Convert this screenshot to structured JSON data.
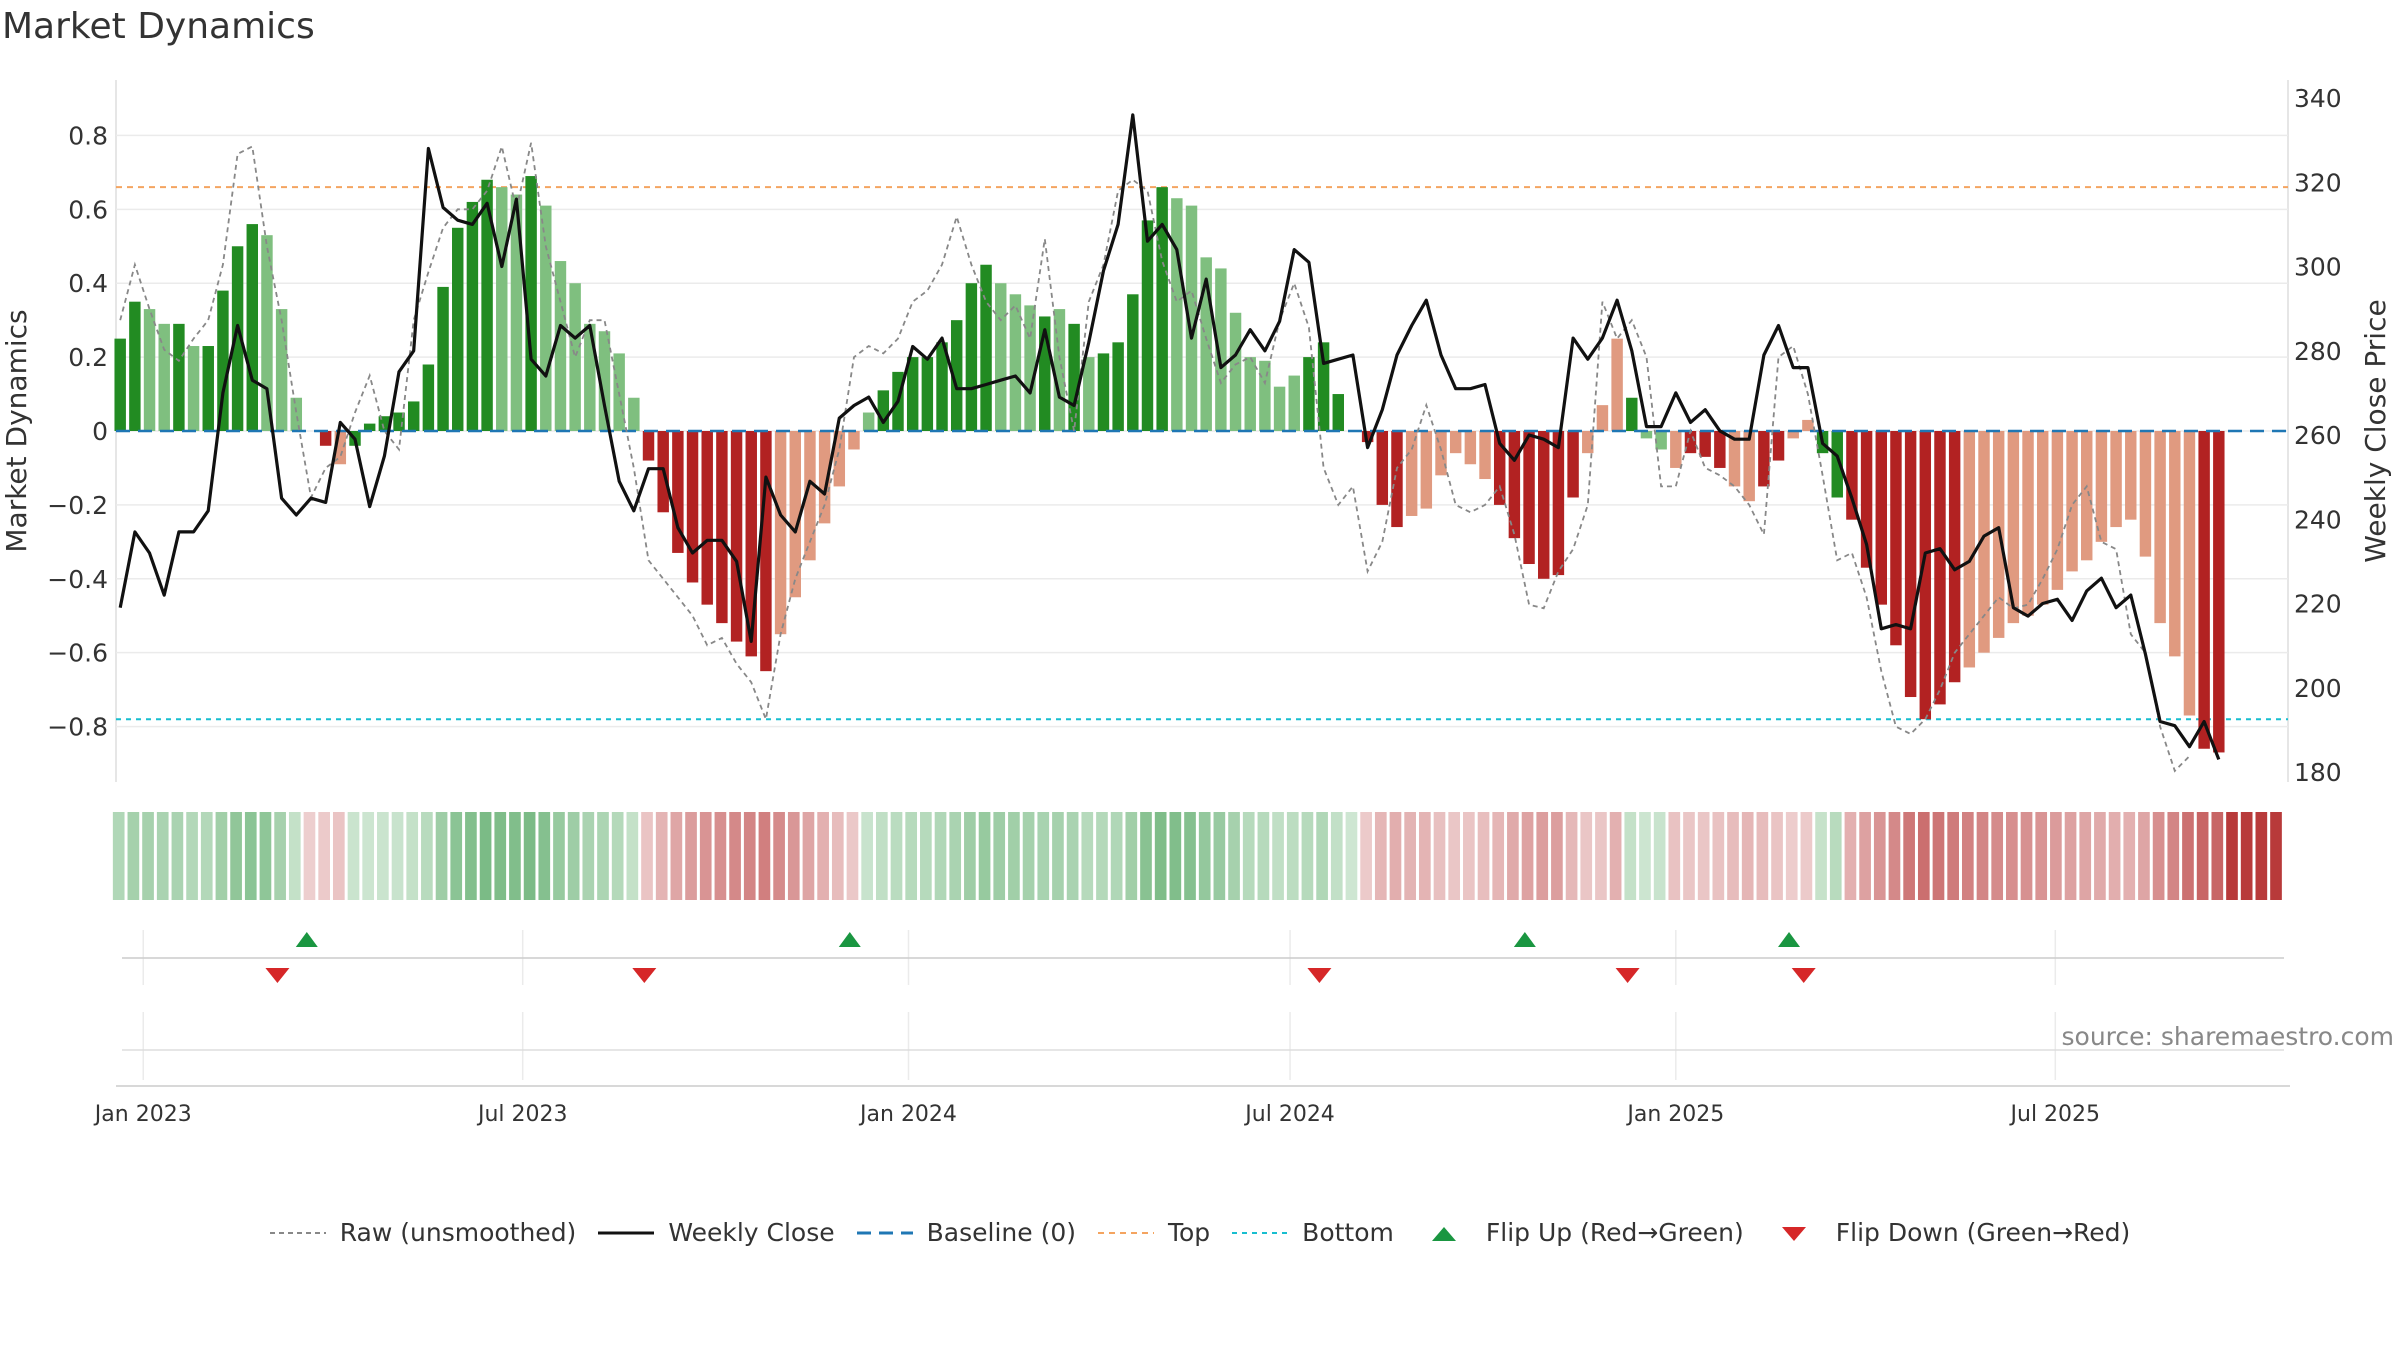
{
  "title": "Market Dynamics",
  "source": "source: sharemaestro.com",
  "colors": {
    "strong_green": "#228b22",
    "light_green": "#7fbf7f",
    "strong_red": "#b22222",
    "light_red": "#e09a80",
    "raw_line": "#888888",
    "close_line": "#111111",
    "baseline": "#1f77b4",
    "top_line": "#f4a460",
    "bottom_line": "#17becf",
    "flip_up": "#1a9641",
    "flip_down": "#d62728"
  },
  "legend": [
    {
      "key": "raw",
      "label": "Raw (unsmoothed)"
    },
    {
      "key": "close",
      "label": "Weekly Close"
    },
    {
      "key": "baseline",
      "label": "Baseline (0)"
    },
    {
      "key": "top",
      "label": "Top"
    },
    {
      "key": "bottom",
      "label": "Bottom"
    },
    {
      "key": "flipup",
      "label": "Flip Up (Red→Green)"
    },
    {
      "key": "flipdown",
      "label": "Flip Down (Green→Red)"
    }
  ],
  "chart_data": {
    "type": "bar",
    "ylabel_left": "Market Dynamics",
    "ylabel_right": "Weekly Close Price",
    "ylim_left": [
      -0.95,
      0.95
    ],
    "ylim_right": [
      180,
      340
    ],
    "yticks_left": [
      "0.8",
      "0.6",
      "0.4",
      "0.2",
      "0",
      "−0.2",
      "−0.4",
      "−0.6",
      "−0.8"
    ],
    "yticks_left_values": [
      0.8,
      0.6,
      0.4,
      0.2,
      0,
      -0.2,
      -0.4,
      -0.6,
      -0.8
    ],
    "yticks_right": [
      "340",
      "320",
      "300",
      "280",
      "260",
      "240",
      "220",
      "200",
      "180"
    ],
    "yticks_right_values": [
      340,
      320,
      300,
      280,
      260,
      240,
      220,
      200,
      180
    ],
    "xlim": [
      "2022-12-19",
      "2025-10-20"
    ],
    "xticks": [
      {
        "date": "2023-01-01",
        "label": "Jan 2023"
      },
      {
        "date": "2023-07-01",
        "label": "Jul 2023"
      },
      {
        "date": "2024-01-01",
        "label": "Jan 2024"
      },
      {
        "date": "2024-07-01",
        "label": "Jul 2024"
      },
      {
        "date": "2025-01-01",
        "label": "Jan 2025"
      },
      {
        "date": "2025-07-01",
        "label": "Jul 2025"
      }
    ],
    "start_date": "2022-12-21",
    "top_level": 0.66,
    "bottom_level": -0.78,
    "grid": true,
    "legend_position": "bottom",
    "smoothed": [
      0.25,
      0.35,
      0.33,
      0.29,
      0.29,
      0.23,
      0.23,
      0.38,
      0.5,
      0.56,
      0.53,
      0.33,
      0.09,
      0,
      -0.04,
      -0.09,
      -0.04,
      0.02,
      0.04,
      0.05,
      0.08,
      0.18,
      0.39,
      0.55,
      0.62,
      0.68,
      0.66,
      0.64,
      0.69,
      0.61,
      0.46,
      0.4,
      0.29,
      0.27,
      0.21,
      0.09,
      -0.08,
      -0.22,
      -0.33,
      -0.41,
      -0.47,
      -0.52,
      -0.57,
      -0.61,
      -0.65,
      -0.55,
      -0.45,
      -0.35,
      -0.25,
      -0.15,
      -0.05,
      0.05,
      0.11,
      0.16,
      0.2,
      0.2,
      0.24,
      0.3,
      0.4,
      0.45,
      0.4,
      0.37,
      0.34,
      0.31,
      0.33,
      0.29,
      0.2,
      0.21,
      0.24,
      0.37,
      0.57,
      0.66,
      0.63,
      0.61,
      0.47,
      0.44,
      0.32,
      0.2,
      0.19,
      0.12,
      0.15,
      0.2,
      0.24,
      0.1,
      0,
      -0.03,
      -0.2,
      -0.26,
      -0.23,
      -0.21,
      -0.12,
      -0.06,
      -0.09,
      -0.13,
      -0.2,
      -0.29,
      -0.36,
      -0.4,
      -0.39,
      -0.18,
      -0.06,
      0.07,
      0.25,
      0.09,
      -0.02,
      -0.05,
      -0.1,
      -0.06,
      -0.07,
      -0.1,
      -0.15,
      -0.19,
      -0.15,
      -0.08,
      -0.02,
      0.03,
      -0.06,
      -0.18,
      -0.24,
      -0.37,
      -0.47,
      -0.58,
      -0.72,
      -0.78,
      -0.74,
      -0.68,
      -0.64,
      -0.6,
      -0.56,
      -0.52,
      -0.5,
      -0.47,
      -0.43,
      -0.38,
      -0.35,
      -0.3,
      -0.26,
      -0.24,
      -0.34,
      -0.52,
      -0.61,
      -0.77,
      -0.86,
      -0.87
    ],
    "colors": [
      "SG",
      "SG",
      "LG",
      "LG",
      "SG",
      "LG",
      "SG",
      "SG",
      "SG",
      "SG",
      "LG",
      "LG",
      "LG",
      "SR",
      "SR",
      "LR",
      "SG",
      "SG",
      "SG",
      "SG",
      "SG",
      "SG",
      "SG",
      "SG",
      "SG",
      "SG",
      "LG",
      "LG",
      "SG",
      "LG",
      "LG",
      "LG",
      "LG",
      "LG",
      "LG",
      "LG",
      "SR",
      "SR",
      "SR",
      "SR",
      "SR",
      "SR",
      "SR",
      "SR",
      "SR",
      "LR",
      "LR",
      "LR",
      "LR",
      "LR",
      "LR",
      "LG",
      "SG",
      "SG",
      "SG",
      "SG",
      "SG",
      "SG",
      "SG",
      "SG",
      "LG",
      "LG",
      "LG",
      "SG",
      "LG",
      "SG",
      "LG",
      "SG",
      "SG",
      "SG",
      "SG",
      "SG",
      "LG",
      "LG",
      "LG",
      "LG",
      "LG",
      "LG",
      "LG",
      "LG",
      "LG",
      "SG",
      "SG",
      "SG",
      "LG",
      "SR",
      "SR",
      "SR",
      "LR",
      "LR",
      "LR",
      "LR",
      "LR",
      "LR",
      "SR",
      "SR",
      "SR",
      "SR",
      "SR",
      "SR",
      "LR",
      "LR",
      "LR",
      "SG",
      "LG",
      "LG",
      "LR",
      "SR",
      "SR",
      "SR",
      "LR",
      "LR",
      "SR",
      "SR",
      "LR",
      "LR",
      "SG",
      "SG",
      "SR",
      "SR",
      "SR",
      "SR",
      "SR",
      "SR",
      "SR",
      "SR",
      "LR",
      "LR",
      "LR",
      "LR",
      "LR",
      "LR",
      "LR",
      "LR",
      "LR",
      "LR",
      "LR",
      "LR",
      "LR",
      "LR",
      "LR",
      "LR",
      "SR",
      "SR",
      "SR",
      "SR",
      "SR",
      "SR"
    ],
    "raw": [
      0.3,
      0.45,
      0.33,
      0.22,
      0.19,
      0.25,
      0.3,
      0.45,
      0.75,
      0.77,
      0.5,
      0.3,
      0.05,
      -0.18,
      -0.1,
      -0.07,
      0.05,
      0.15,
      0.0,
      -0.05,
      0.3,
      0.43,
      0.55,
      0.6,
      0.6,
      0.65,
      0.77,
      0.6,
      0.78,
      0.5,
      0.35,
      0.2,
      0.3,
      0.3,
      0.1,
      -0.1,
      -0.35,
      -0.4,
      -0.45,
      -0.5,
      -0.58,
      -0.56,
      -0.63,
      -0.68,
      -0.78,
      -0.55,
      -0.4,
      -0.3,
      -0.2,
      -0.05,
      0.2,
      0.23,
      0.21,
      0.25,
      0.35,
      0.38,
      0.45,
      0.58,
      0.45,
      0.35,
      0.3,
      0.34,
      0.25,
      0.52,
      0.2,
      0.0,
      0.35,
      0.45,
      0.65,
      0.68,
      0.65,
      0.46,
      0.35,
      0.38,
      0.25,
      0.13,
      0.18,
      0.2,
      0.13,
      0.3,
      0.4,
      0.28,
      -0.1,
      -0.2,
      -0.15,
      -0.38,
      -0.3,
      -0.1,
      -0.05,
      0.07,
      -0.05,
      -0.2,
      -0.22,
      -0.2,
      -0.15,
      -0.28,
      -0.47,
      -0.48,
      -0.38,
      -0.32,
      -0.2,
      0.35,
      0.25,
      0.3,
      0.2,
      -0.15,
      -0.15,
      0.0,
      -0.1,
      -0.12,
      -0.15,
      -0.2,
      -0.28,
      0.2,
      0.23,
      0.1,
      -0.12,
      -0.35,
      -0.33,
      -0.45,
      -0.65,
      -0.8,
      -0.82,
      -0.78,
      -0.7,
      -0.6,
      -0.55,
      -0.5,
      -0.45,
      -0.48,
      -0.47,
      -0.4,
      -0.32,
      -0.2,
      -0.15,
      -0.3,
      -0.32,
      -0.55,
      -0.6,
      -0.8,
      -0.92,
      -0.88
    ],
    "close": [
      219,
      237,
      232,
      222,
      237,
      237,
      242,
      270,
      286,
      273,
      271,
      245,
      241,
      245,
      244,
      263,
      259,
      243,
      255,
      275,
      280,
      328,
      314,
      311,
      310,
      315,
      300,
      316,
      278,
      274,
      286,
      283,
      286,
      267,
      249,
      242,
      252,
      252,
      238,
      232,
      235,
      235,
      230,
      211,
      250,
      241,
      237,
      249,
      246,
      264,
      267,
      269,
      263,
      268,
      281,
      278,
      283,
      271,
      271,
      272,
      273,
      274,
      270,
      285,
      269,
      267,
      282,
      299,
      310,
      336,
      306,
      310,
      304,
      283,
      297,
      276,
      279,
      285,
      280,
      287,
      304,
      301,
      277,
      278,
      279,
      257,
      266,
      279,
      286,
      292,
      279,
      271,
      271,
      272,
      258,
      254,
      260,
      259,
      257,
      283,
      278,
      283,
      292,
      280,
      262,
      262,
      270,
      263,
      266,
      261,
      259,
      259,
      279,
      286,
      276,
      276,
      258,
      255,
      245,
      234,
      214,
      215,
      214,
      232,
      233,
      228,
      230,
      236,
      238,
      219,
      217,
      220,
      221,
      216,
      223,
      226,
      219,
      222,
      208,
      192,
      191,
      186,
      192,
      183
    ]
  },
  "flips_up": [
    "2023-03-20",
    "2023-12-04",
    "2024-10-21",
    "2025-02-24"
  ],
  "flips_down": [
    "2023-03-06",
    "2023-08-28",
    "2024-07-15",
    "2024-12-09",
    "2025-03-03"
  ]
}
